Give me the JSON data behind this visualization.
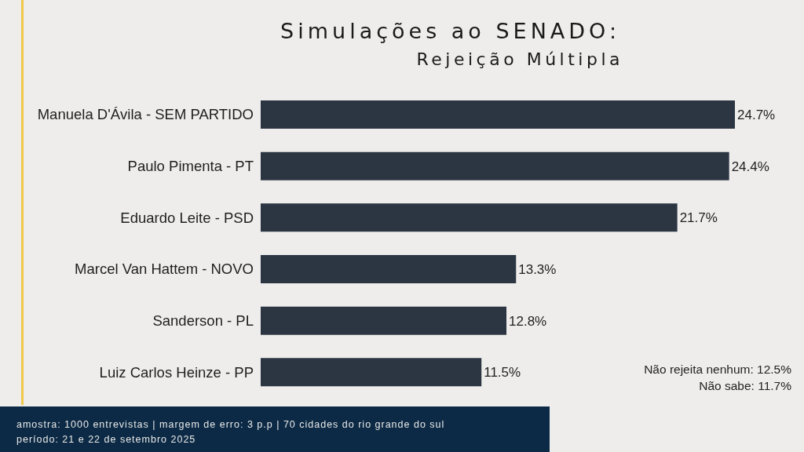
{
  "chart_data": {
    "type": "bar",
    "orientation": "horizontal",
    "title": "Simulações ao SENADO:",
    "subtitle": "Rejeição Múltipla",
    "categories": [
      "Manuela D'Ávila - SEM PARTIDO",
      "Paulo Pimenta - PT",
      "Eduardo Leite - PSD",
      "Marcel Van Hattem - NOVO",
      "Sanderson - PL",
      "Luiz Carlos Heinze - PP"
    ],
    "values": [
      24.7,
      24.4,
      21.7,
      13.3,
      12.8,
      11.5
    ],
    "value_labels": [
      "24.7%",
      "24.4%",
      "21.7%",
      "13.3%",
      "12.8%",
      "11.5%"
    ],
    "color": "#2c3643",
    "tick_labels": "y",
    "annotations": [
      "Não rejeita nenhum: 12.5%",
      "Não sabe: 11.7%",
      "amostra: 1000 entrevistas | margem de erro: 3 p.p | 70 cidades do rio grande do sul",
      "período: 21 e 22 de setembro 2025"
    ]
  }
}
